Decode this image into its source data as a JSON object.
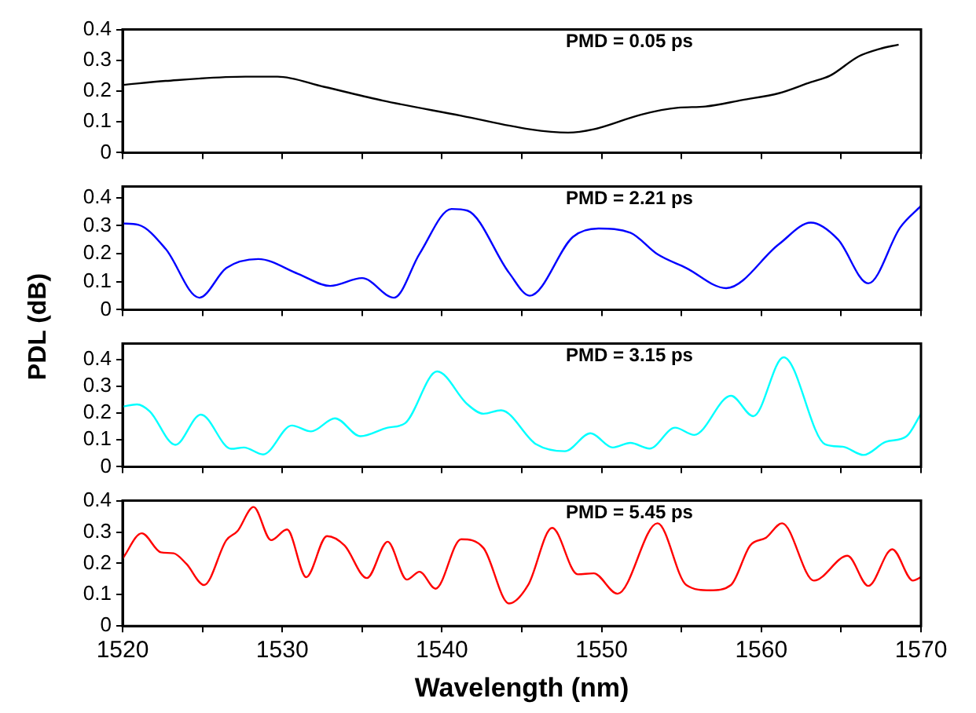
{
  "chart_data": [
    {
      "type": "line",
      "annotations": [
        "PMD = 0.05 ps"
      ],
      "xlim": [
        1520,
        1570
      ],
      "xticks": [
        1520,
        {
          "value": 1525,
          "label": null
        },
        1530,
        {
          "value": 1535,
          "label": null
        },
        1540,
        {
          "value": 1545,
          "label": null
        },
        1550,
        {
          "value": 1555,
          "label": null
        },
        1560,
        {
          "value": 1565,
          "label": null
        },
        1570
      ],
      "ylim": [
        0,
        0.4
      ],
      "yticks": [
        0,
        0.1,
        0.2,
        0.3,
        0.4
      ],
      "tick_labels": "y",
      "grid": false,
      "legend": false,
      "marker": "none",
      "line_style": "solid",
      "series": [
        {
          "color": "#000000",
          "x": [
            1520,
            1522.7,
            1527.7,
            1529.7,
            1532.6,
            1536.3,
            1541.2,
            1545.5,
            1547.9,
            1549.5,
            1552.5,
            1554.8,
            1556.5,
            1558.8,
            1561.1,
            1563.1,
            1564.3,
            1566.1,
            1567.4,
            1568.6
          ],
          "values": [
            0.22,
            0.233,
            0.247,
            0.247,
            0.214,
            0.169,
            0.12,
            0.076,
            0.065,
            0.076,
            0.124,
            0.146,
            0.15,
            0.171,
            0.193,
            0.229,
            0.25,
            0.313,
            0.337,
            0.351
          ]
        }
      ]
    },
    {
      "type": "line",
      "ylabel": "PDL (dB)",
      "annotations": [
        "PMD = 2.21 ps"
      ],
      "xlim": [
        1520,
        1570
      ],
      "xticks": [
        1520,
        {
          "value": 1525,
          "label": null
        },
        1530,
        {
          "value": 1535,
          "label": null
        },
        1540,
        {
          "value": 1545,
          "label": null
        },
        1550,
        {
          "value": 1555,
          "label": null
        },
        1560,
        {
          "value": 1565,
          "label": null
        },
        1570
      ],
      "ylim": [
        0,
        0.44
      ],
      "yticks": [
        0,
        0.1,
        0.2,
        0.3,
        0.4
      ],
      "tick_labels": "y",
      "grid": false,
      "legend": false,
      "marker": "none",
      "line_style": "solid",
      "series": [
        {
          "color": "#0000ff",
          "x": [
            1520,
            1521,
            1522.7,
            1524.8,
            1526.5,
            1528.5,
            1531,
            1533,
            1535,
            1537,
            1538.6,
            1540.6,
            1541.6,
            1544.2,
            1545.5,
            1548.2,
            1549.8,
            1551.8,
            1553.5,
            1555.3,
            1557.8,
            1561.1,
            1563.1,
            1564.8,
            1566.7,
            1568.7,
            1570
          ],
          "values": [
            0.308,
            0.303,
            0.217,
            0.043,
            0.149,
            0.181,
            0.128,
            0.085,
            0.113,
            0.043,
            0.2,
            0.36,
            0.354,
            0.132,
            0.05,
            0.26,
            0.29,
            0.275,
            0.198,
            0.149,
            0.077,
            0.234,
            0.311,
            0.251,
            0.094,
            0.294,
            0.371
          ]
        }
      ]
    },
    {
      "type": "line",
      "annotations": [
        "PMD = 3.15 ps"
      ],
      "xlim": [
        1520,
        1570
      ],
      "xticks": [
        1520,
        {
          "value": 1525,
          "label": null
        },
        1530,
        {
          "value": 1535,
          "label": null
        },
        1540,
        {
          "value": 1545,
          "label": null
        },
        1550,
        {
          "value": 1555,
          "label": null
        },
        1560,
        {
          "value": 1565,
          "label": null
        },
        1570
      ],
      "ylim": [
        0,
        0.46
      ],
      "yticks": [
        0,
        0.1,
        0.2,
        0.3,
        0.4
      ],
      "tick_labels": "y",
      "grid": false,
      "legend": false,
      "marker": "none",
      "line_style": "solid",
      "series": [
        {
          "color": "#00ffff",
          "x": [
            1520,
            1520.9,
            1521.7,
            1523.3,
            1524.9,
            1526.8,
            1527.6,
            1528.8,
            1530.6,
            1531.8,
            1533.3,
            1534.9,
            1536.6,
            1537.7,
            1539.7,
            1541.6,
            1542.6,
            1543.7,
            1545.9,
            1547.7,
            1549.3,
            1550.7,
            1551.8,
            1553,
            1554.6,
            1555.8,
            1558.1,
            1559.5,
            1561.4,
            1564,
            1565.1,
            1566.4,
            1567.8,
            1569.1,
            1570
          ],
          "values": [
            0.225,
            0.233,
            0.207,
            0.082,
            0.195,
            0.067,
            0.072,
            0.046,
            0.154,
            0.132,
            0.181,
            0.114,
            0.146,
            0.163,
            0.356,
            0.233,
            0.198,
            0.211,
            0.084,
            0.058,
            0.125,
            0.072,
            0.089,
            0.068,
            0.146,
            0.119,
            0.265,
            0.189,
            0.409,
            0.084,
            0.075,
            0.044,
            0.093,
            0.114,
            0.198
          ]
        }
      ]
    },
    {
      "type": "line",
      "xlabel": "Wavelength (nm)",
      "annotations": [
        "PMD = 5.45 ps"
      ],
      "xlim": [
        1520,
        1570
      ],
      "xticks": [
        1520,
        {
          "value": 1525,
          "label": null
        },
        1530,
        {
          "value": 1535,
          "label": null
        },
        1540,
        {
          "value": 1545,
          "label": null
        },
        1550,
        {
          "value": 1555,
          "label": null
        },
        1560,
        {
          "value": 1565,
          "label": null
        },
        1570
      ],
      "ylim": [
        0,
        0.4
      ],
      "yticks": [
        0,
        0.1,
        0.2,
        0.3,
        0.4
      ],
      "grid": false,
      "legend": false,
      "marker": "none",
      "line_style": "solid",
      "series": [
        {
          "color": "#ff0000",
          "x": [
            1520,
            1521.2,
            1522.4,
            1523.2,
            1524,
            1525.1,
            1526.5,
            1527.2,
            1528.2,
            1529.3,
            1530.3,
            1531.5,
            1532.8,
            1533.9,
            1535.3,
            1536.6,
            1537.8,
            1538.6,
            1539.6,
            1541.2,
            1542.6,
            1544.2,
            1545.4,
            1546.9,
            1548.5,
            1549.5,
            1551,
            1553.5,
            1555.3,
            1556.8,
            1558.1,
            1559.3,
            1560.3,
            1561.3,
            1563.3,
            1565.4,
            1566.7,
            1568.2,
            1569.5,
            1570
          ],
          "values": [
            0.215,
            0.296,
            0.235,
            0.232,
            0.198,
            0.131,
            0.274,
            0.303,
            0.38,
            0.274,
            0.308,
            0.156,
            0.287,
            0.257,
            0.153,
            0.269,
            0.148,
            0.173,
            0.119,
            0.277,
            0.249,
            0.072,
            0.131,
            0.313,
            0.165,
            0.168,
            0.103,
            0.328,
            0.131,
            0.114,
            0.131,
            0.257,
            0.282,
            0.328,
            0.145,
            0.224,
            0.128,
            0.245,
            0.145,
            0.156
          ]
        }
      ]
    }
  ]
}
